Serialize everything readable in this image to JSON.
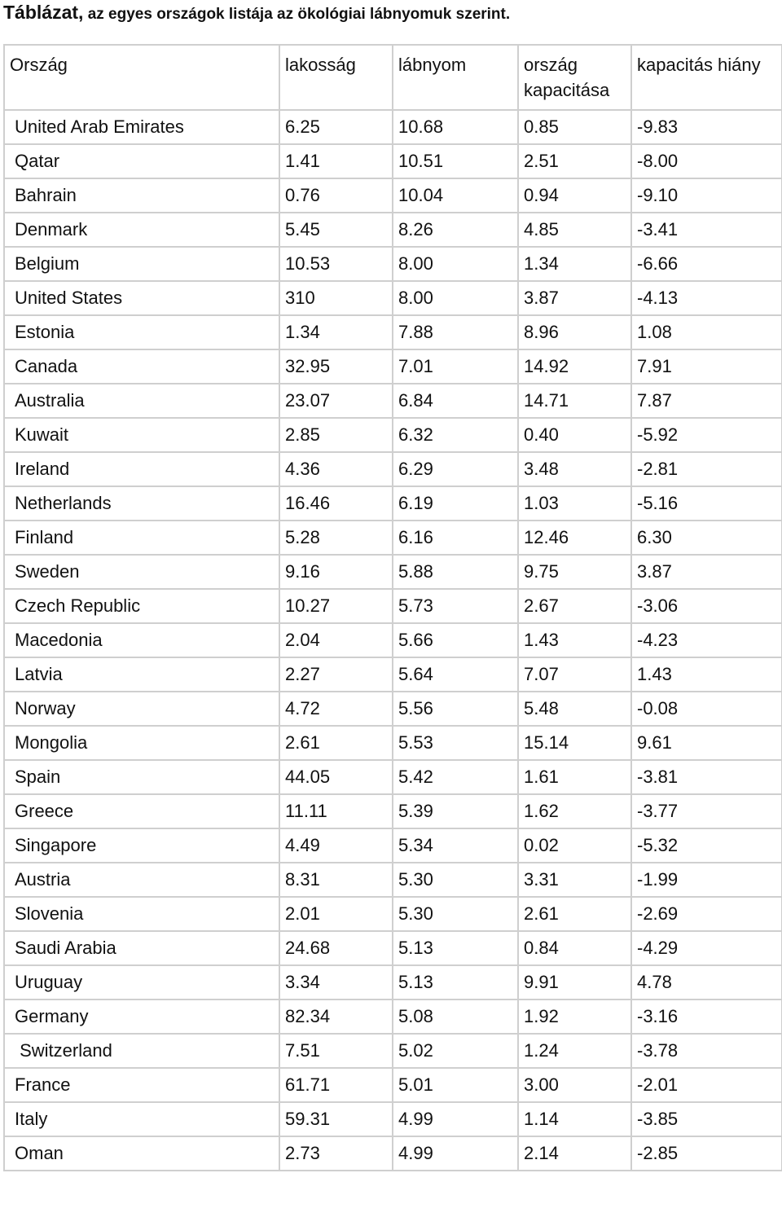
{
  "caption": {
    "lead": "Táblázat,",
    "rest": " az egyes országok listája az ökológiai lábnyomuk szerint."
  },
  "table": {
    "headers": [
      "Ország",
      "lakosság",
      "lábnyom",
      "ország kapacitása",
      "kapacitás hiány"
    ],
    "rows": [
      [
        "United Arab Emirates",
        "6.25",
        "10.68",
        "0.85",
        "-9.83"
      ],
      [
        "Qatar",
        "1.41",
        "10.51",
        "2.51",
        "-8.00"
      ],
      [
        "Bahrain",
        "0.76",
        "10.04",
        "0.94",
        "-9.10"
      ],
      [
        "Denmark",
        "5.45",
        "8.26",
        "4.85",
        "-3.41"
      ],
      [
        "Belgium",
        "10.53",
        "8.00",
        "1.34",
        "-6.66"
      ],
      [
        "United States",
        "310",
        "8.00",
        "3.87",
        "-4.13"
      ],
      [
        "Estonia",
        "1.34",
        "7.88",
        "8.96",
        "1.08"
      ],
      [
        "Canada",
        "32.95",
        "7.01",
        "14.92",
        "7.91"
      ],
      [
        "Australia",
        "23.07",
        "6.84",
        "14.71",
        "7.87"
      ],
      [
        "Kuwait",
        "2.85",
        "6.32",
        "0.40",
        "-5.92"
      ],
      [
        "Ireland",
        "4.36",
        "6.29",
        "3.48",
        "-2.81"
      ],
      [
        "Netherlands",
        "16.46",
        "6.19",
        "1.03",
        "-5.16"
      ],
      [
        "Finland",
        "5.28",
        "6.16",
        "12.46",
        "6.30"
      ],
      [
        "Sweden",
        "9.16",
        "5.88",
        "9.75",
        "3.87"
      ],
      [
        "Czech Republic",
        "10.27",
        "5.73",
        "2.67",
        "-3.06"
      ],
      [
        "Macedonia",
        "2.04",
        "5.66",
        "1.43",
        "-4.23"
      ],
      [
        "Latvia",
        "2.27",
        "5.64",
        "7.07",
        "1.43"
      ],
      [
        "Norway",
        "4.72",
        "5.56",
        "5.48",
        "-0.08"
      ],
      [
        "Mongolia",
        "2.61",
        "5.53",
        "15.14",
        "9.61"
      ],
      [
        "Spain",
        "44.05",
        "5.42",
        "1.61",
        "-3.81"
      ],
      [
        "Greece",
        "11.11",
        "5.39",
        "1.62",
        "-3.77"
      ],
      [
        "Singapore",
        "4.49",
        "5.34",
        "0.02",
        "-5.32"
      ],
      [
        "Austria",
        "8.31",
        "5.30",
        "3.31",
        "-1.99"
      ],
      [
        "Slovenia",
        "2.01",
        "5.30",
        "2.61",
        "-2.69"
      ],
      [
        "Saudi Arabia",
        "24.68",
        "5.13",
        "0.84",
        "-4.29"
      ],
      [
        "Uruguay",
        "3.34",
        "5.13",
        "9.91",
        "4.78"
      ],
      [
        "Germany",
        "82.34",
        "5.08",
        "1.92",
        "-3.16"
      ],
      [
        " Switzerland",
        "7.51",
        "5.02",
        "1.24",
        "-3.78"
      ],
      [
        "France",
        "61.71",
        "5.01",
        "3.00",
        "-2.01"
      ],
      [
        "Italy",
        "59.31",
        "4.99",
        "1.14",
        "-3.85"
      ],
      [
        "Oman",
        "2.73",
        "4.99",
        "2.14",
        "-2.85"
      ]
    ]
  }
}
